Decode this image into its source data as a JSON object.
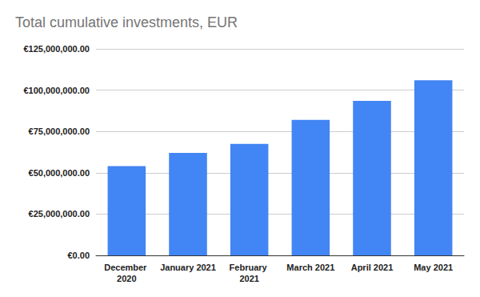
{
  "chart_data": {
    "type": "bar",
    "title": "Total cumulative investments, EUR",
    "categories": [
      "December 2020",
      "January 2021",
      "February 2021",
      "March 2021",
      "April 2021",
      "May 2021"
    ],
    "values": [
      54000000,
      62000000,
      67500000,
      82000000,
      93500000,
      106000000
    ],
    "color": "#4285f4",
    "ylim": [
      0,
      125000000
    ],
    "yticks": [
      {
        "value": 0,
        "label": "€0.00"
      },
      {
        "value": 25000000,
        "label": "€25,000,000.00"
      },
      {
        "value": 50000000,
        "label": "€50,000,000.00"
      },
      {
        "value": 75000000,
        "label": "€75,000,000.00"
      },
      {
        "value": 100000000,
        "label": "€100,000,000.00"
      },
      {
        "value": 125000000,
        "label": "€125,000,000.00"
      }
    ],
    "grid": true
  }
}
